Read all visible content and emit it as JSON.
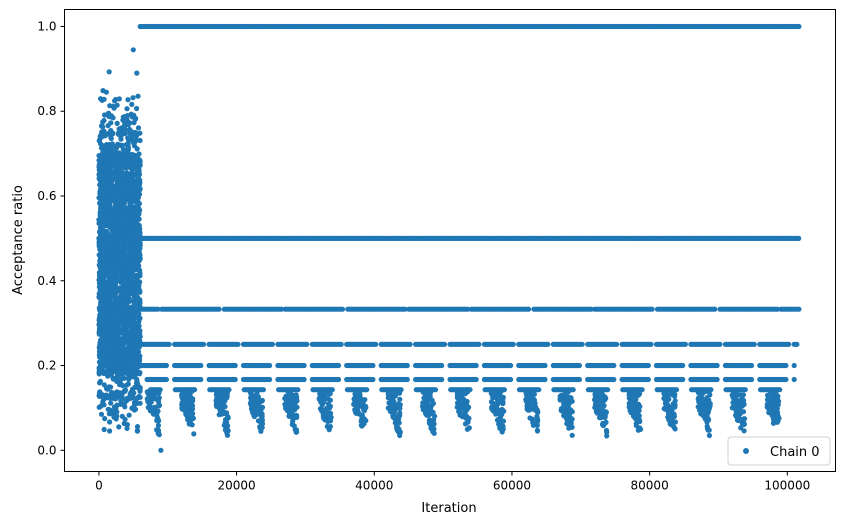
{
  "chart_data": {
    "type": "scatter",
    "title": "",
    "xlabel": "Iteration",
    "ylabel": "Acceptance ratio",
    "xlim": [
      -5000,
      107000
    ],
    "ylim": [
      -0.05,
      1.04
    ],
    "xticks": [
      0,
      20000,
      40000,
      60000,
      80000,
      100000
    ],
    "xtick_labels": [
      "0",
      "20000",
      "40000",
      "60000",
      "80000",
      "100000"
    ],
    "yticks": [
      0.0,
      0.2,
      0.4,
      0.6,
      0.8,
      1.0
    ],
    "ytick_labels": [
      "0.0",
      "0.2",
      "0.4",
      "0.6",
      "0.8",
      "1.0"
    ],
    "grid": false,
    "legend_position": "bottom-right",
    "color": "#1f77b4",
    "series": [
      {
        "name": "Chain 0",
        "bands": [
          {
            "y": 1.0,
            "x_range": [
              6000,
              101800
            ]
          },
          {
            "y": 0.5,
            "x_range": [
              0,
              101800
            ]
          },
          {
            "y": 0.333,
            "x_range": [
              6000,
              101800
            ]
          },
          {
            "y": 0.25,
            "x_range": [
              6000,
              101500
            ]
          },
          {
            "y": 0.2,
            "x_range": [
              6000,
              101000
            ]
          },
          {
            "y": 0.167,
            "x_range": [
              7000,
              101000
            ]
          },
          {
            "y": 0.143,
            "x_range": [
              7500,
              100500
            ]
          }
        ],
        "burn_in": {
          "x_range": [
            0,
            6000
          ],
          "y_range": [
            0.04,
            0.95
          ]
        },
        "notable_points": [
          {
            "x": 5000,
            "y": 0.945
          },
          {
            "x": 1500,
            "y": 0.893
          },
          {
            "x": 5500,
            "y": 0.89
          },
          {
            "x": 9000,
            "y": 0.0
          }
        ]
      }
    ]
  }
}
